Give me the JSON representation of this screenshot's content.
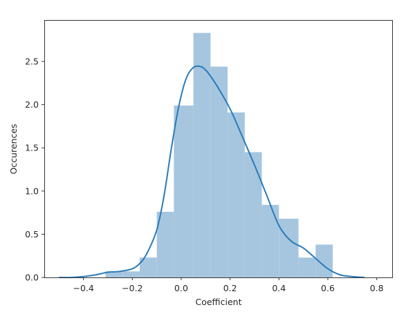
{
  "chart_data": {
    "type": "bar",
    "subtype": "histogram_with_kde",
    "title": "",
    "xlabel": "Coefficient",
    "ylabel": "Occurences",
    "xlim": [
      -0.56,
      0.86
    ],
    "ylim": [
      0,
      2.98
    ],
    "xticks": [
      "−0.4",
      "−0.2",
      "0.0",
      "0.2",
      "0.4",
      "0.6",
      "0.8"
    ],
    "xtick_values": [
      -0.4,
      -0.2,
      0.0,
      0.2,
      0.4,
      0.6,
      0.8
    ],
    "yticks": [
      "0.0",
      "0.5",
      "1.0",
      "1.5",
      "2.0",
      "2.5"
    ],
    "ytick_values": [
      0,
      0.5,
      1.0,
      1.5,
      2.0,
      2.5
    ],
    "grid": false,
    "legend": null,
    "bins": {
      "edges": [
        -0.31,
        -0.24,
        -0.17,
        -0.1,
        -0.03,
        0.05,
        0.12,
        0.19,
        0.26,
        0.33,
        0.4,
        0.48,
        0.55,
        0.62
      ],
      "values": [
        0.07,
        0.07,
        0.23,
        0.76,
        1.99,
        2.83,
        2.44,
        1.91,
        1.45,
        0.84,
        0.68,
        0.23,
        0.38
      ]
    },
    "kde": {
      "x": [
        -0.5,
        -0.45,
        -0.4,
        -0.35,
        -0.3,
        -0.25,
        -0.2,
        -0.17,
        -0.14,
        -0.1,
        -0.07,
        -0.04,
        -0.01,
        0.02,
        0.05,
        0.08,
        0.1,
        0.12,
        0.15,
        0.2,
        0.25,
        0.3,
        0.35,
        0.4,
        0.45,
        0.5,
        0.55,
        0.6,
        0.65,
        0.7,
        0.75
      ],
      "y": [
        0.0,
        0.0,
        0.01,
        0.03,
        0.06,
        0.07,
        0.1,
        0.16,
        0.28,
        0.55,
        0.95,
        1.5,
        1.98,
        2.3,
        2.43,
        2.44,
        2.4,
        2.33,
        2.2,
        1.95,
        1.63,
        1.3,
        0.95,
        0.6,
        0.42,
        0.34,
        0.22,
        0.1,
        0.03,
        0.01,
        0.0
      ]
    },
    "colors": {
      "bar": "#a6c6df",
      "line": "#2a7ab8"
    }
  }
}
